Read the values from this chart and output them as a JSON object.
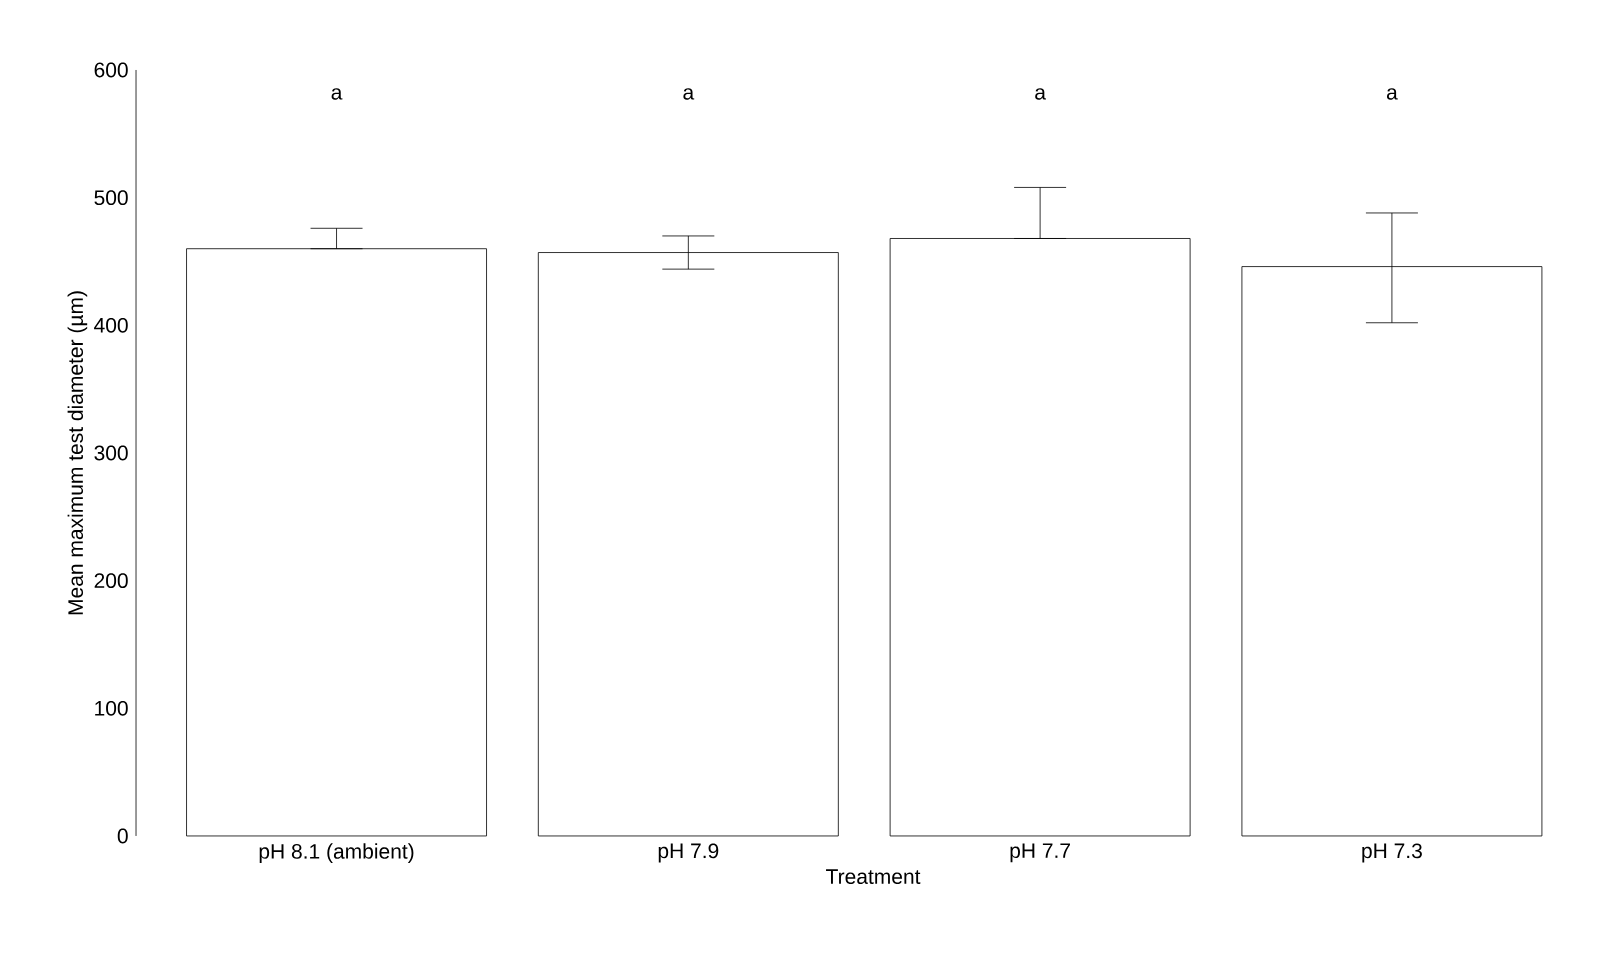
{
  "chart_data": {
    "type": "bar",
    "xlabel": "Treatment",
    "ylabel": "Mean maximum test diameter (µm)",
    "categories": [
      "pH 8.1 (ambient)",
      "pH 7.9",
      "pH 7.7",
      "pH 7.3"
    ],
    "values": [
      460,
      457,
      468,
      446
    ],
    "errors": [
      [
        460,
        476
      ],
      [
        444,
        470
      ],
      [
        468,
        508
      ],
      [
        402,
        488
      ]
    ],
    "color": "#ffffff",
    "ylim": [
      0,
      600
    ],
    "yticks": [
      0,
      100,
      200,
      300,
      400,
      500,
      600
    ],
    "annotations": [
      "a",
      "a",
      "a",
      "a"
    ]
  }
}
